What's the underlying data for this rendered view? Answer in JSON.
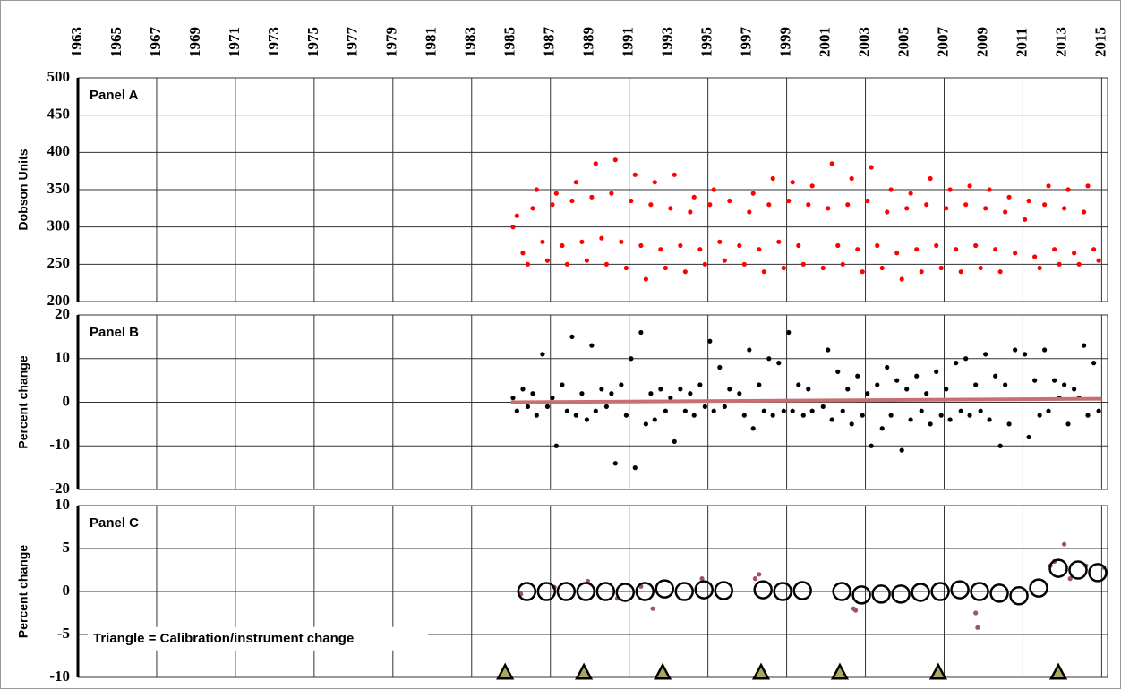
{
  "chart_data": [
    {
      "type": "scatter",
      "title": "Panel A",
      "ylabel": "Dobson Units",
      "xlim": [
        1963,
        2015.3
      ],
      "xticks": [
        1963,
        1965,
        1967,
        1969,
        1971,
        1973,
        1975,
        1977,
        1979,
        1981,
        1983,
        1985,
        1987,
        1989,
        1991,
        1993,
        1995,
        1997,
        1999,
        2001,
        2003,
        2005,
        2007,
        2009,
        2011,
        2013,
        2015
      ],
      "ylim": [
        200,
        500
      ],
      "yticks": [
        200,
        250,
        300,
        350,
        400,
        450,
        500
      ],
      "grid": true,
      "series": [
        {
          "marker": "dot",
          "color": "#ff0000",
          "x": [
            1985.1,
            1985.3,
            1985.6,
            1985.85,
            1986.1,
            1986.3,
            1986.6,
            1986.85,
            1987.1,
            1987.3,
            1987.6,
            1987.85,
            1988.1,
            1988.3,
            1988.6,
            1988.85,
            1989.1,
            1989.3,
            1989.6,
            1989.85,
            1990.1,
            1990.3,
            1990.6,
            1990.85,
            1991.1,
            1991.3,
            1991.6,
            1991.85,
            1992.1,
            1992.3,
            1992.6,
            1992.85,
            1993.1,
            1993.3,
            1993.6,
            1993.85,
            1994.1,
            1994.3,
            1994.6,
            1994.85,
            1995.1,
            1995.3,
            1995.6,
            1995.85,
            1996.1,
            1996.6,
            1996.85,
            1997.1,
            1997.3,
            1997.6,
            1997.85,
            1998.1,
            1998.3,
            1998.6,
            1998.85,
            1999.1,
            1999.3,
            1999.6,
            1999.85,
            2000.1,
            2000.3,
            2000.85,
            2001.1,
            2001.3,
            2001.6,
            2001.85,
            2002.1,
            2002.3,
            2002.6,
            2002.85,
            2003.1,
            2003.3,
            2003.6,
            2003.85,
            2004.1,
            2004.3,
            2004.6,
            2004.85,
            2005.1,
            2005.3,
            2005.6,
            2005.85,
            2006.1,
            2006.3,
            2006.6,
            2006.85,
            2007.1,
            2007.3,
            2007.6,
            2007.85,
            2008.1,
            2008.3,
            2008.6,
            2008.85,
            2009.1,
            2009.3,
            2009.6,
            2009.85,
            2010.1,
            2010.3,
            2010.6,
            2011.1,
            2011.3,
            2011.6,
            2011.85,
            2012.1,
            2012.3,
            2012.6,
            2012.85,
            2013.1,
            2013.3,
            2013.6,
            2013.85,
            2014.1,
            2014.3,
            2014.6,
            2014.85
          ],
          "values": [
            300,
            315,
            265,
            250,
            325,
            350,
            280,
            255,
            330,
            345,
            275,
            250,
            335,
            360,
            280,
            255,
            340,
            385,
            285,
            250,
            345,
            390,
            280,
            245,
            335,
            370,
            275,
            230,
            330,
            360,
            270,
            245,
            325,
            370,
            275,
            240,
            320,
            340,
            270,
            250,
            330,
            350,
            280,
            255,
            335,
            275,
            250,
            320,
            345,
            270,
            240,
            330,
            365,
            280,
            245,
            335,
            360,
            275,
            250,
            330,
            355,
            245,
            325,
            385,
            275,
            250,
            330,
            365,
            270,
            240,
            335,
            380,
            275,
            245,
            320,
            350,
            265,
            230,
            325,
            345,
            270,
            240,
            330,
            365,
            275,
            245,
            325,
            350,
            270,
            240,
            330,
            355,
            275,
            245,
            325,
            350,
            270,
            240,
            320,
            340,
            265,
            310,
            335,
            260,
            245,
            330,
            355,
            270,
            250,
            325,
            350,
            265,
            250,
            320,
            355,
            270,
            255
          ]
        }
      ]
    },
    {
      "type": "scatter",
      "title": "Panel B",
      "ylabel": "Percent change",
      "ylim": [
        -20,
        20
      ],
      "yticks": [
        -20,
        -10,
        0,
        10,
        20
      ],
      "grid": true,
      "series": [
        {
          "marker": "dot",
          "color": "#000000",
          "x": [
            1985.1,
            1985.3,
            1985.6,
            1985.85,
            1986.1,
            1986.3,
            1986.6,
            1986.85,
            1987.1,
            1987.3,
            1987.6,
            1987.85,
            1988.1,
            1988.3,
            1988.6,
            1988.85,
            1989.1,
            1989.3,
            1989.6,
            1989.85,
            1990.1,
            1990.3,
            1990.6,
            1990.85,
            1991.1,
            1991.3,
            1991.6,
            1991.85,
            1992.1,
            1992.3,
            1992.6,
            1992.85,
            1993.1,
            1993.3,
            1993.6,
            1993.85,
            1994.1,
            1994.3,
            1994.6,
            1994.85,
            1995.1,
            1995.3,
            1995.6,
            1995.85,
            1996.1,
            1996.6,
            1996.85,
            1997.1,
            1997.3,
            1997.6,
            1997.85,
            1998.1,
            1998.3,
            1998.6,
            1998.85,
            1999.1,
            1999.3,
            1999.6,
            1999.85,
            2000.1,
            2000.3,
            2000.85,
            2001.1,
            2001.3,
            2001.6,
            2001.85,
            2002.1,
            2002.3,
            2002.6,
            2002.85,
            2003.1,
            2003.3,
            2003.6,
            2003.85,
            2004.1,
            2004.3,
            2004.6,
            2004.85,
            2005.1,
            2005.3,
            2005.6,
            2005.85,
            2006.1,
            2006.3,
            2006.6,
            2006.85,
            2007.1,
            2007.3,
            2007.6,
            2007.85,
            2008.1,
            2008.3,
            2008.6,
            2008.85,
            2009.1,
            2009.3,
            2009.6,
            2009.85,
            2010.1,
            2010.3,
            2010.6,
            2011.1,
            2011.3,
            2011.6,
            2011.85,
            2012.1,
            2012.3,
            2012.6,
            2012.85,
            2013.1,
            2013.3,
            2013.6,
            2013.85,
            2014.1,
            2014.3,
            2014.6,
            2014.85
          ],
          "values": [
            1,
            -2,
            3,
            -1,
            2,
            -3,
            11,
            -1,
            1,
            -10,
            4,
            -2,
            15,
            -3,
            2,
            -4,
            13,
            -2,
            3,
            -1,
            2,
            -14,
            4,
            -3,
            10,
            -15,
            16,
            -5,
            2,
            -4,
            3,
            -2,
            1,
            -9,
            3,
            -2,
            2,
            -3,
            4,
            -1,
            14,
            -2,
            8,
            -1,
            3,
            2,
            -3,
            12,
            -6,
            4,
            -2,
            10,
            -3,
            9,
            -2,
            16,
            -2,
            4,
            -3,
            3,
            -2,
            -1,
            12,
            -4,
            7,
            -2,
            3,
            -5,
            6,
            -3,
            2,
            -10,
            4,
            -6,
            8,
            -3,
            5,
            -11,
            3,
            -4,
            6,
            -2,
            2,
            -5,
            7,
            -3,
            3,
            -4,
            9,
            -2,
            10,
            -3,
            4,
            -2,
            11,
            -4,
            6,
            -10,
            4,
            -5,
            12,
            11,
            -8,
            5,
            -3,
            12,
            -2,
            5,
            1,
            4,
            -5,
            3,
            1,
            13,
            -3,
            9,
            -2
          ]
        },
        {
          "marker": "line",
          "color": "#c87070",
          "x": [
            1985,
            2015
          ],
          "values": [
            0,
            0.8
          ]
        }
      ]
    },
    {
      "type": "scatter",
      "title": "Panel C",
      "ylabel": "Percent change",
      "annotation": "Triangle = Calibration/instrument change",
      "ylim": [
        -10,
        10
      ],
      "yticks": [
        -10,
        -5,
        0,
        5,
        10
      ],
      "grid": true,
      "series": [
        {
          "marker": "dot",
          "color": "#a05070",
          "x": [
            1985.5,
            1987.2,
            1988.9,
            1990.4,
            1991.6,
            1992.2,
            1994.7,
            1997.4,
            1997.6,
            2002.4,
            2002.5,
            2008.6,
            2008.7,
            2012.4,
            2012.6,
            2013.1,
            2013.4,
            2014.2,
            2015.1
          ],
          "values": [
            -0.3,
            0.5,
            1.2,
            -0.8,
            0.6,
            -2,
            1.5,
            1.5,
            2,
            -2,
            -2.2,
            -2.5,
            -4.2,
            3,
            3.5,
            5.5,
            1.5,
            3,
            2.8
          ]
        },
        {
          "marker": "ring",
          "color": "#000000",
          "x": [
            1985.8,
            1986.8,
            1987.8,
            1988.8,
            1989.8,
            1990.8,
            1991.8,
            1992.8,
            1993.8,
            1994.8,
            1995.8,
            1997.8,
            1998.8,
            1999.8,
            2001.8,
            2002.8,
            2003.8,
            2004.8,
            2005.8,
            2006.8,
            2007.8,
            2008.8,
            2009.8,
            2010.8,
            2011.8,
            2012.8,
            2013.8,
            2014.8
          ],
          "values": [
            0,
            0,
            0,
            0,
            0,
            -0.1,
            0,
            0.3,
            0,
            0.2,
            0.1,
            0.2,
            0,
            0.1,
            0,
            -0.4,
            -0.3,
            -0.3,
            -0.1,
            0,
            0.2,
            0,
            -0.2,
            -0.5,
            0.4,
            2.7,
            2.5,
            2.2
          ]
        },
        {
          "marker": "triangle",
          "color": "#a8a860",
          "x": [
            1984.7,
            1988.7,
            1992.7,
            1997.7,
            2001.7,
            2006.7,
            2012.8
          ],
          "values": [
            -9.5,
            -9.5,
            -9.5,
            -9.5,
            -9.5,
            -9.5,
            -9.5
          ]
        }
      ]
    }
  ]
}
